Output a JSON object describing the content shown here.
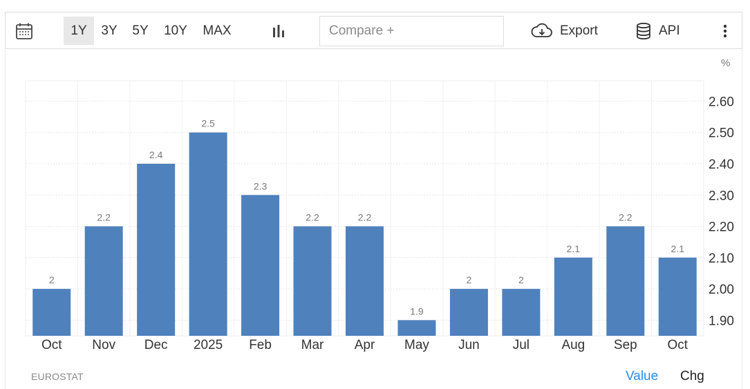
{
  "toolbar": {
    "calendar_icon": "calendar-icon",
    "ranges": [
      "1Y",
      "3Y",
      "5Y",
      "10Y",
      "MAX"
    ],
    "active_range": "1Y",
    "chart_type_icon": "bar-chart-icon",
    "compare_placeholder": "Compare +",
    "export_label": "Export",
    "export_icon": "cloud-download-icon",
    "api_label": "API",
    "api_icon": "database-icon",
    "more_icon": "vertical-dots-icon"
  },
  "unit_label": "%",
  "source": "EUROSTAT",
  "view_toggle": {
    "value_label": "Value",
    "chg_label": "Chg",
    "active": "Value"
  },
  "colors": {
    "bar": "#4f81bd",
    "active_toggle": "#2d8be0"
  },
  "chart_data": {
    "type": "bar",
    "categories": [
      "Oct",
      "Nov",
      "Dec",
      "2025",
      "Feb",
      "Mar",
      "Apr",
      "May",
      "Jun",
      "Jul",
      "Aug",
      "Sep",
      "Oct"
    ],
    "values": [
      2,
      2.2,
      2.4,
      2.5,
      2.3,
      2.2,
      2.2,
      1.9,
      2,
      2,
      2.1,
      2.2,
      2.1
    ],
    "data_labels": [
      "2",
      "2.2",
      "2.4",
      "2.5",
      "2.3",
      "2.2",
      "2.2",
      "1.9",
      "2",
      "2",
      "2.1",
      "2.2",
      "2.1"
    ],
    "yticks": [
      "1.90",
      "2.00",
      "2.10",
      "2.20",
      "2.30",
      "2.40",
      "2.50",
      "2.60"
    ],
    "ylim": [
      1.85,
      2.665
    ],
    "y_axis_side": "right",
    "grid": true
  }
}
